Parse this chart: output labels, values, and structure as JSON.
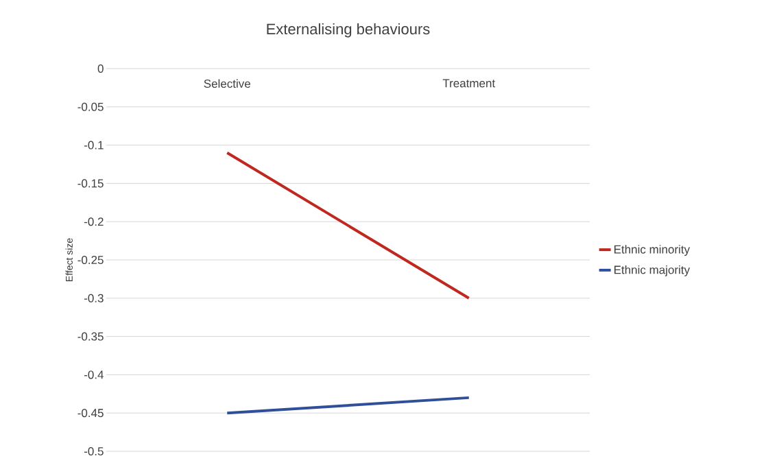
{
  "chart_data": {
    "type": "line",
    "title": "Externalising behaviours",
    "ylabel": "Effect size",
    "categories": [
      "Selective",
      "Treatment"
    ],
    "series": [
      {
        "name": "Ethnic minority",
        "color": "#c0281f",
        "values": [
          -0.11,
          -0.3
        ]
      },
      {
        "name": "Ethnic majority",
        "color": "#2f4f9b",
        "values": [
          -0.45,
          -0.43
        ]
      }
    ],
    "ylim": [
      -0.5,
      0
    ],
    "yticks": [
      -0.5,
      -0.45,
      -0.4,
      -0.35,
      -0.3,
      -0.25,
      -0.2,
      -0.15,
      -0.1,
      -0.05,
      0
    ],
    "grid": "y",
    "legend": "right",
    "marker": "none",
    "line_style": "solid"
  }
}
